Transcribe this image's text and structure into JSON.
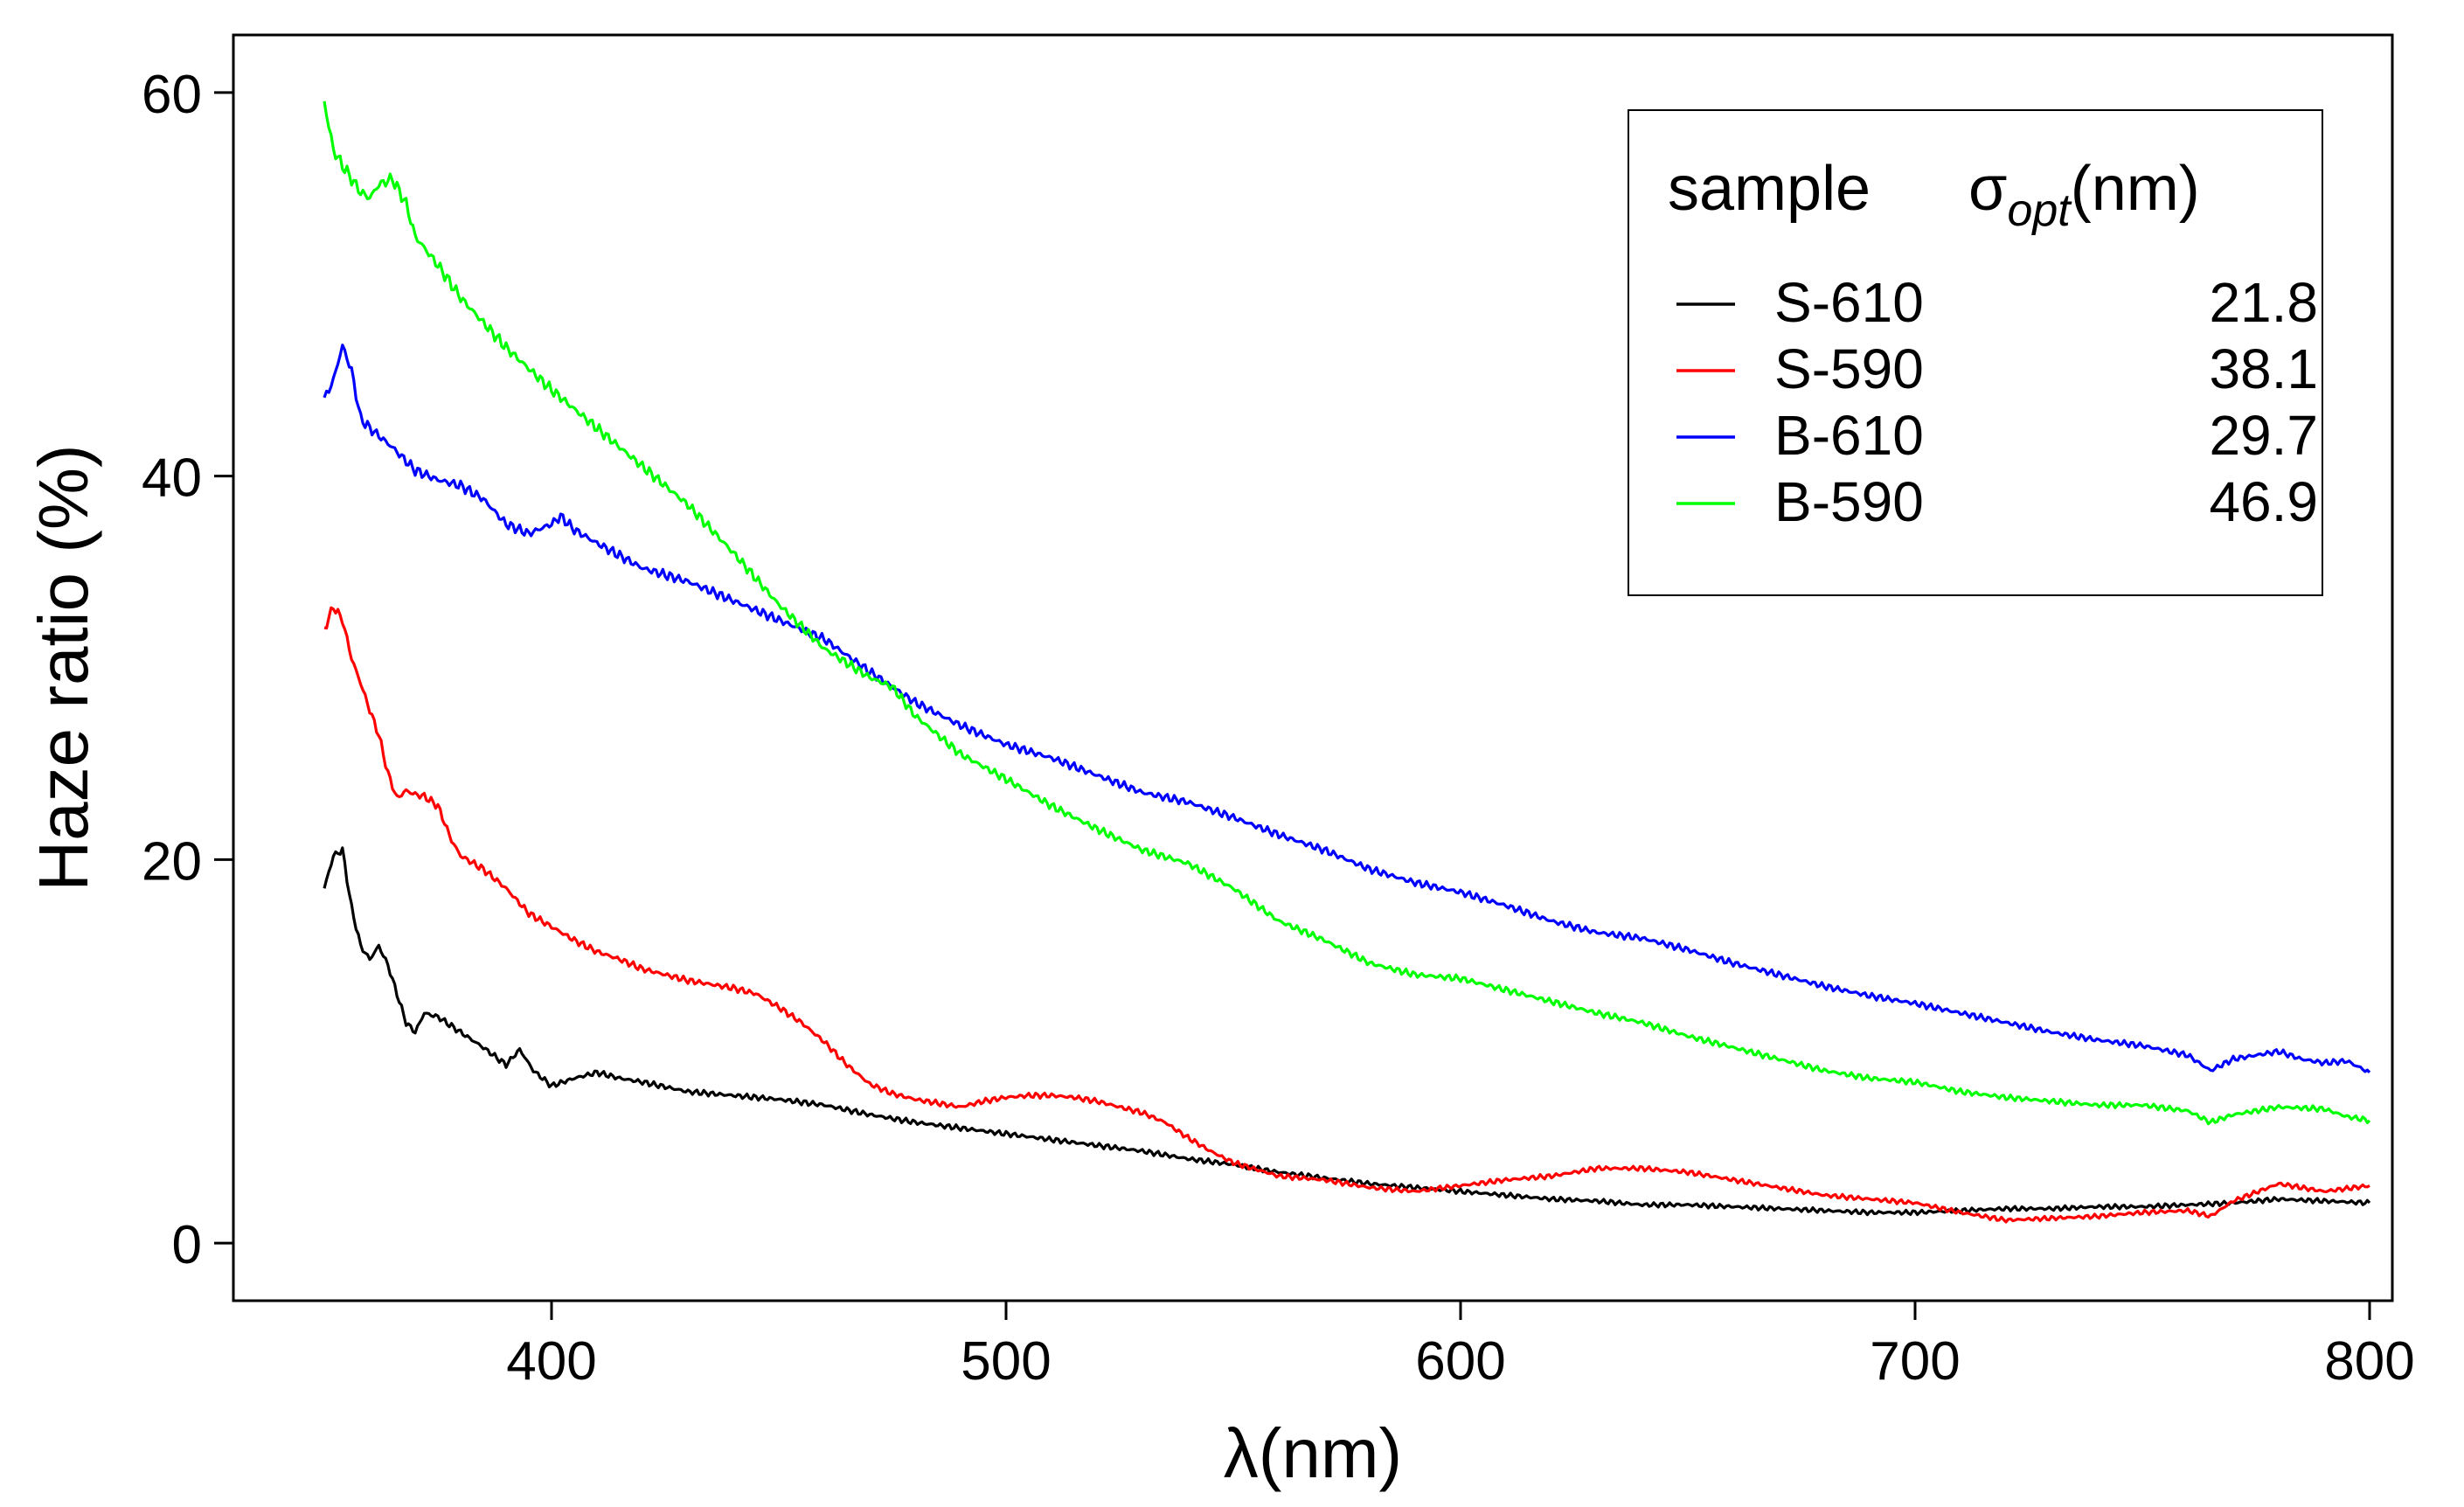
{
  "chart_data": {
    "type": "line",
    "title": "",
    "xlabel": "λ(nm)",
    "ylabel": "Haze ratio (%)",
    "xlim": [
      330,
      805
    ],
    "ylim": [
      -3,
      63
    ],
    "xticks": [
      400,
      500,
      600,
      700,
      800
    ],
    "yticks": [
      0,
      20,
      40,
      60
    ],
    "legend": {
      "position": "top-right",
      "header_sample": "sample",
      "header_sigma_symbol": "σ",
      "header_sigma_sub": "opt",
      "header_sigma_unit": "(nm)"
    },
    "series": [
      {
        "name": "S-610",
        "sigma": "21.8",
        "color": "#000000",
        "points": [
          [
            350,
            18.5
          ],
          [
            352,
            20.2
          ],
          [
            354,
            20.5
          ],
          [
            356,
            17.5
          ],
          [
            358,
            15.5
          ],
          [
            360,
            14.8
          ],
          [
            362,
            15.5
          ],
          [
            364,
            14.5
          ],
          [
            366,
            13
          ],
          [
            368,
            11.5
          ],
          [
            370,
            11
          ],
          [
            372,
            12
          ],
          [
            375,
            11.8
          ],
          [
            380,
            11
          ],
          [
            385,
            10.2
          ],
          [
            390,
            9.3
          ],
          [
            393,
            10.1
          ],
          [
            396,
            9
          ],
          [
            400,
            8.2
          ],
          [
            405,
            8.6
          ],
          [
            410,
            8.9
          ],
          [
            415,
            8.6
          ],
          [
            420,
            8.4
          ],
          [
            430,
            7.9
          ],
          [
            440,
            7.7
          ],
          [
            450,
            7.5
          ],
          [
            460,
            7.2
          ],
          [
            470,
            6.7
          ],
          [
            480,
            6.3
          ],
          [
            490,
            6
          ],
          [
            500,
            5.7
          ],
          [
            510,
            5.4
          ],
          [
            520,
            5.1
          ],
          [
            530,
            4.8
          ],
          [
            540,
            4.4
          ],
          [
            550,
            4.1
          ],
          [
            560,
            3.7
          ],
          [
            570,
            3.4
          ],
          [
            580,
            3.1
          ],
          [
            590,
            2.9
          ],
          [
            600,
            2.7
          ],
          [
            610,
            2.5
          ],
          [
            620,
            2.3
          ],
          [
            630,
            2.2
          ],
          [
            640,
            2
          ],
          [
            650,
            2
          ],
          [
            660,
            1.9
          ],
          [
            670,
            1.8
          ],
          [
            680,
            1.7
          ],
          [
            690,
            1.6
          ],
          [
            700,
            1.6
          ],
          [
            710,
            1.7
          ],
          [
            720,
            1.8
          ],
          [
            730,
            1.8
          ],
          [
            740,
            1.9
          ],
          [
            750,
            1.9
          ],
          [
            760,
            2
          ],
          [
            770,
            2.1
          ],
          [
            780,
            2.3
          ],
          [
            790,
            2.2
          ],
          [
            800,
            2.1
          ]
        ]
      },
      {
        "name": "S-590",
        "sigma": "38.1",
        "color": "#ff0000",
        "points": [
          [
            350,
            32
          ],
          [
            352,
            33.2
          ],
          [
            354,
            32.5
          ],
          [
            356,
            30.5
          ],
          [
            358,
            29.2
          ],
          [
            360,
            27.8
          ],
          [
            362,
            26.5
          ],
          [
            364,
            24.5
          ],
          [
            366,
            23.2
          ],
          [
            368,
            23.6
          ],
          [
            370,
            23.4
          ],
          [
            372,
            23.3
          ],
          [
            375,
            22.8
          ],
          [
            378,
            21
          ],
          [
            380,
            20.2
          ],
          [
            385,
            19.5
          ],
          [
            390,
            18.5
          ],
          [
            395,
            17.2
          ],
          [
            400,
            16.5
          ],
          [
            405,
            15.8
          ],
          [
            410,
            15.2
          ],
          [
            415,
            14.8
          ],
          [
            420,
            14.3
          ],
          [
            425,
            14
          ],
          [
            430,
            13.7
          ],
          [
            435,
            13.5
          ],
          [
            440,
            13.3
          ],
          [
            445,
            13
          ],
          [
            450,
            12.3
          ],
          [
            455,
            11.5
          ],
          [
            460,
            10.5
          ],
          [
            465,
            9.3
          ],
          [
            470,
            8.3
          ],
          [
            475,
            7.8
          ],
          [
            480,
            7.5
          ],
          [
            485,
            7.3
          ],
          [
            490,
            7.1
          ],
          [
            495,
            7.4
          ],
          [
            500,
            7.6
          ],
          [
            505,
            7.7
          ],
          [
            510,
            7.7
          ],
          [
            515,
            7.6
          ],
          [
            520,
            7.4
          ],
          [
            525,
            7.1
          ],
          [
            530,
            6.8
          ],
          [
            535,
            6.3
          ],
          [
            540,
            5.5
          ],
          [
            545,
            4.8
          ],
          [
            550,
            4.2
          ],
          [
            560,
            3.5
          ],
          [
            570,
            3.3
          ],
          [
            580,
            2.9
          ],
          [
            590,
            2.7
          ],
          [
            600,
            3
          ],
          [
            610,
            3.3
          ],
          [
            620,
            3.5
          ],
          [
            630,
            3.9
          ],
          [
            640,
            3.9
          ],
          [
            650,
            3.7
          ],
          [
            660,
            3.3
          ],
          [
            670,
            2.9
          ],
          [
            680,
            2.5
          ],
          [
            690,
            2.3
          ],
          [
            700,
            2.1
          ],
          [
            710,
            1.6
          ],
          [
            720,
            1.2
          ],
          [
            730,
            1.3
          ],
          [
            740,
            1.4
          ],
          [
            750,
            1.6
          ],
          [
            760,
            1.7
          ],
          [
            765,
            1.4
          ],
          [
            770,
            2.2
          ],
          [
            780,
            3.1
          ],
          [
            790,
            2.7
          ],
          [
            800,
            3
          ]
        ]
      },
      {
        "name": "B-610",
        "sigma": "29.7",
        "color": "#0000ff",
        "points": [
          [
            350,
            44
          ],
          [
            352,
            45
          ],
          [
            354,
            46.8
          ],
          [
            356,
            45.5
          ],
          [
            358,
            43
          ],
          [
            360,
            42.5
          ],
          [
            365,
            41.5
          ],
          [
            370,
            40.3
          ],
          [
            375,
            39.8
          ],
          [
            380,
            39.5
          ],
          [
            385,
            38.8
          ],
          [
            390,
            37.5
          ],
          [
            395,
            37
          ],
          [
            400,
            37.5
          ],
          [
            402,
            37.9
          ],
          [
            405,
            37.2
          ],
          [
            410,
            36.5
          ],
          [
            420,
            35.2
          ],
          [
            430,
            34.5
          ],
          [
            440,
            33.5
          ],
          [
            450,
            32.5
          ],
          [
            460,
            31.5
          ],
          [
            470,
            29.8
          ],
          [
            480,
            28.2
          ],
          [
            490,
            27
          ],
          [
            500,
            26
          ],
          [
            510,
            25.3
          ],
          [
            520,
            24.4
          ],
          [
            530,
            23.5
          ],
          [
            540,
            23
          ],
          [
            550,
            22.2
          ],
          [
            560,
            21.3
          ],
          [
            570,
            20.5
          ],
          [
            580,
            19.5
          ],
          [
            590,
            18.8
          ],
          [
            600,
            18.3
          ],
          [
            610,
            17.6
          ],
          [
            620,
            16.8
          ],
          [
            630,
            16.2
          ],
          [
            640,
            15.9
          ],
          [
            650,
            15.3
          ],
          [
            660,
            14.6
          ],
          [
            670,
            14
          ],
          [
            680,
            13.4
          ],
          [
            690,
            12.9
          ],
          [
            700,
            12.5
          ],
          [
            710,
            12
          ],
          [
            720,
            11.5
          ],
          [
            730,
            11
          ],
          [
            740,
            10.6
          ],
          [
            750,
            10.3
          ],
          [
            760,
            9.8
          ],
          [
            765,
            9
          ],
          [
            770,
            9.6
          ],
          [
            780,
            10
          ],
          [
            785,
            9.6
          ],
          [
            790,
            9.4
          ],
          [
            795,
            9.5
          ],
          [
            800,
            8.9
          ]
        ]
      },
      {
        "name": "B-590",
        "sigma": "46.9",
        "color": "#00ff00",
        "points": [
          [
            350,
            59.5
          ],
          [
            352,
            57
          ],
          [
            354,
            56.2
          ],
          [
            356,
            55.5
          ],
          [
            358,
            54.8
          ],
          [
            360,
            54.5
          ],
          [
            362,
            55.2
          ],
          [
            365,
            55.5
          ],
          [
            368,
            54.2
          ],
          [
            370,
            52.5
          ],
          [
            375,
            51
          ],
          [
            380,
            49.3
          ],
          [
            390,
            46.7
          ],
          [
            400,
            44.5
          ],
          [
            410,
            42.5
          ],
          [
            420,
            40.5
          ],
          [
            430,
            38.5
          ],
          [
            440,
            36
          ],
          [
            450,
            33.3
          ],
          [
            460,
            31
          ],
          [
            470,
            29.5
          ],
          [
            475,
            29
          ],
          [
            480,
            27.5
          ],
          [
            490,
            25.5
          ],
          [
            500,
            24.2
          ],
          [
            510,
            22.8
          ],
          [
            520,
            21.6
          ],
          [
            530,
            20.5
          ],
          [
            540,
            19.8
          ],
          [
            550,
            18.5
          ],
          [
            560,
            16.8
          ],
          [
            570,
            15.8
          ],
          [
            580,
            14.6
          ],
          [
            590,
            14
          ],
          [
            600,
            13.8
          ],
          [
            610,
            13.2
          ],
          [
            620,
            12.6
          ],
          [
            630,
            12
          ],
          [
            640,
            11.5
          ],
          [
            650,
            10.8
          ],
          [
            660,
            10.2
          ],
          [
            670,
            9.6
          ],
          [
            680,
            9
          ],
          [
            690,
            8.6
          ],
          [
            700,
            8.4
          ],
          [
            710,
            7.9
          ],
          [
            720,
            7.6
          ],
          [
            730,
            7.4
          ],
          [
            740,
            7.2
          ],
          [
            750,
            7.2
          ],
          [
            760,
            6.9
          ],
          [
            765,
            6.3
          ],
          [
            770,
            6.7
          ],
          [
            780,
            7.1
          ],
          [
            790,
            7
          ],
          [
            795,
            6.6
          ],
          [
            800,
            6.4
          ]
        ]
      }
    ]
  }
}
